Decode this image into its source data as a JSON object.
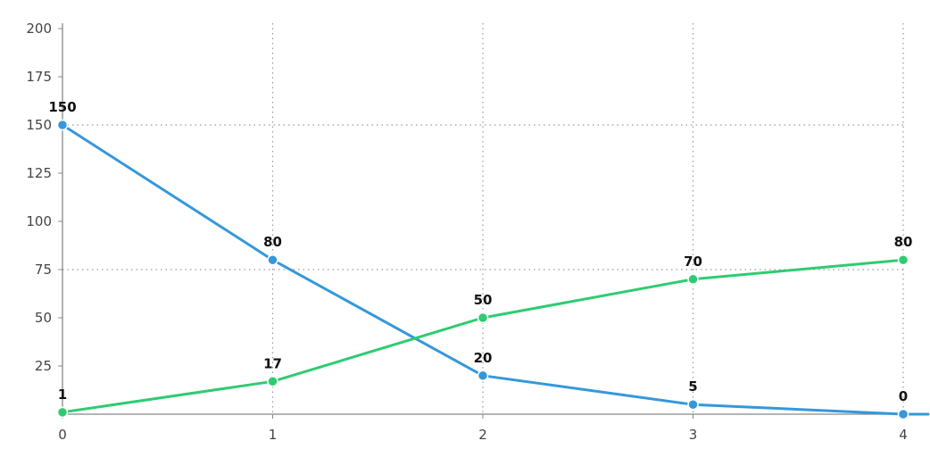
{
  "chart_data": {
    "type": "line",
    "title": "",
    "xlabel": "",
    "ylabel": "",
    "x": [
      0,
      1,
      2,
      3,
      4
    ],
    "x_ticks": [
      "0",
      "1",
      "2",
      "3",
      "4"
    ],
    "y_ticks": [
      "25",
      "50",
      "75",
      "100",
      "125",
      "150",
      "175",
      "200"
    ],
    "xlim": [
      0,
      4
    ],
    "ylim": [
      0,
      200
    ],
    "grid": {
      "vertical_dotted": true,
      "horizontal_dotted_at": [
        75,
        150
      ]
    },
    "legend": "none",
    "series": [
      {
        "values": [
          150,
          80,
          20,
          5,
          0
        ],
        "labels": [
          "150",
          "80",
          "20",
          "5",
          "0"
        ],
        "color": "#3498db"
      },
      {
        "values": [
          1,
          17,
          50,
          70,
          80
        ],
        "labels": [
          "1",
          "17",
          "50",
          "70",
          "80"
        ],
        "color": "#2ecc71"
      }
    ],
    "axis_color": "#888888",
    "grid_color": "#999999"
  }
}
